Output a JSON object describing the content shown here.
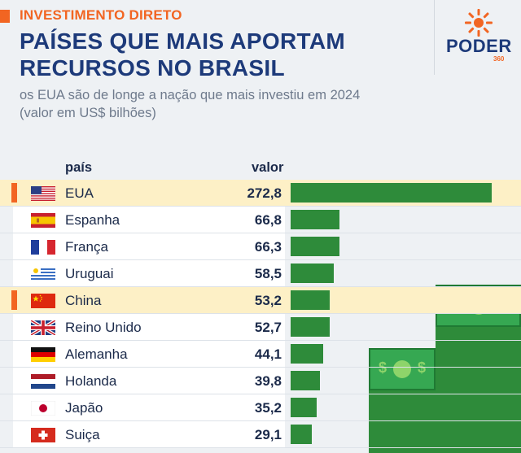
{
  "header": {
    "kicker": "INVESTIMENTO DIRETO",
    "title_line1": "PAÍSES QUE MAIS APORTAM",
    "title_line2": "RECURSOS NO BRASIL",
    "subtitle_line1": "os EUA são de longe a nação que mais investiu em 2024",
    "subtitle_line2": "(valor em US$ bilhões)",
    "logo_text": "PODER",
    "logo_sub": "360"
  },
  "colors": {
    "accent": "#f26522",
    "title": "#1d3a7a",
    "bar": "#2e8b3a",
    "highlight": "#fdf0c6"
  },
  "chart_data": {
    "type": "bar",
    "orientation": "horizontal",
    "column_headers": {
      "country": "país",
      "value": "valor"
    },
    "categories": [
      "EUA",
      "Espanha",
      "França",
      "Uruguai",
      "China",
      "Reino Unido",
      "Alemanha",
      "Holanda",
      "Japão",
      "Suiça"
    ],
    "values": [
      272.8,
      66.8,
      66.3,
      58.5,
      53.2,
      52.7,
      44.1,
      39.8,
      35.2,
      29.1
    ],
    "value_labels": [
      "272,8",
      "66,8",
      "66,3",
      "58,5",
      "53,2",
      "52,7",
      "44,1",
      "39,8",
      "35,2",
      "29,1"
    ],
    "highlighted": [
      "EUA",
      "China"
    ],
    "flags": [
      "usa-flag-icon",
      "spain-flag-icon",
      "france-flag-icon",
      "uruguay-flag-icon",
      "china-flag-icon",
      "uk-flag-icon",
      "germany-flag-icon",
      "netherlands-flag-icon",
      "japan-flag-icon",
      "switzerland-flag-icon"
    ]
  }
}
